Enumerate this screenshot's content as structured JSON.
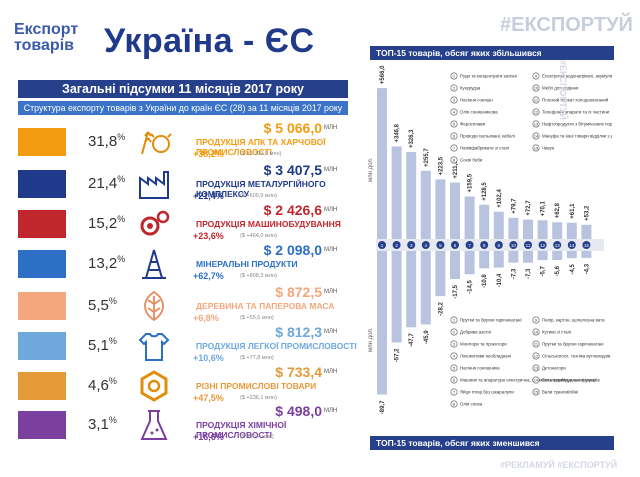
{
  "header": {
    "small_line1": "Експорт",
    "small_line2": "товарів",
    "big_title": "Україна - ЄС",
    "hashtag": "#ЕКСПОРТУЙ",
    "bottom_hashtag": "#РЕКЛАМУЙ #ЕКСПОРТУЙ"
  },
  "summary_title": "Загальні підсумки 11 місяців 2017 року",
  "structure_title": "Структура експорту товарів з України  до країн ЄС (28)  за 11 місяців 2017 року",
  "unit_mln": "МЛН",
  "categories": [
    {
      "pct": "31,8",
      "color": "#f39c12",
      "icon": "wheat-cow-icon",
      "amount": "$ 5 066,0",
      "name": "ПРОДУКЦІЯ АПК ТА ХАРЧОВОЇ ПРОМИСЛОВОСТІ",
      "growth": "+38,2%",
      "abs": "($ +1 399,9 млн)",
      "amount_color": "#f39c12",
      "name_color": "#f39c12"
    },
    {
      "pct": "21,4",
      "color": "#1f3a8a",
      "icon": "factory-icon",
      "amount": "$ 3 407,5",
      "name": "ПРОДУКЦІЯ МЕТАЛУРГІЙНОГО КОМПЛЕКСУ",
      "growth": "+21,4%",
      "abs": "($ +600,9 млн)",
      "amount_color": "#1f3a8a",
      "name_color": "#1f3a8a"
    },
    {
      "pct": "15,2",
      "color": "#c0272d",
      "icon": "gears-icon",
      "amount": "$ 2 426,6",
      "name": "ПРОДУКЦІЯ МАШИНОБУДУВАННЯ",
      "growth": "+23,6%",
      "abs": "($ +464,0 млн)",
      "amount_color": "#c0272d",
      "name_color": "#c0272d"
    },
    {
      "pct": "13,2",
      "color": "#2c6fc4",
      "icon": "oil-rig-icon",
      "amount": "$ 2 098,0",
      "name": "МІНЕРАЛЬНІ ПРОДУКТИ",
      "growth": "+62,7%",
      "abs": "($ +808,3 млн)",
      "amount_color": "#2c6fc4",
      "name_color": "#2c6fc4"
    },
    {
      "pct": "5,5",
      "color": "#f4a77c",
      "icon": "leaf-icon",
      "amount": "$ 872,5",
      "name": "ДЕРЕВИНА ТА ПАПЕРОВА МАСА",
      "growth": "+6,8%",
      "abs": "($ +55,6 млн)",
      "amount_color": "#f4a77c",
      "name_color": "#f4a77c"
    },
    {
      "pct": "5,1",
      "color": "#6fa8dc",
      "icon": "shirt-icon",
      "amount": "$ 812,3",
      "name": "ПРОДУКЦІЯ ЛЕГКОЇ ПРОМИСЛОВОСТІ",
      "growth": "+10,6%",
      "abs": "($ +77,8 млн)",
      "amount_color": "#6fa8dc",
      "name_color": "#6fa8dc"
    },
    {
      "pct": "4,6",
      "color": "#e59a3a",
      "icon": "nut-icon",
      "amount": "$ 733,4",
      "name": "РІЗНІ ПРОМИСЛОВІ ТОВАРИ",
      "growth": "+47,5%",
      "abs": "($ +236,1 млн)",
      "amount_color": "#e59a3a",
      "name_color": "#e59a3a"
    },
    {
      "pct": "3,1",
      "color": "#7b3fa0",
      "icon": "flask-icon",
      "amount": "$ 498,0",
      "name": "ПРОДУКЦІЯ ХІМІЧНОЇ ПРОМИСЛОВОСТІ",
      "growth": "+16,6%",
      "abs": "($ +70,7 млн)",
      "amount_color": "#7b3fa0",
      "name_color": "#7b3fa0"
    }
  ],
  "chart_titles": {
    "top": "ТОП-15 товарів, обсяг яких збільшився",
    "bottom": "ТОП-15 товарів, обсяг яких зменшився",
    "ylabel": "млн дол."
  },
  "chart_data": [
    {
      "type": "bar",
      "title": "ТОП-15 товарів, обсяг яких збільшився",
      "ylabel": "млн дол.",
      "categories": [
        "1",
        "2",
        "3",
        "4",
        "5",
        "6",
        "7",
        "8",
        "9",
        "10",
        "11",
        "12",
        "13",
        "14",
        "15"
      ],
      "values": [
        566.0,
        346.8,
        326.3,
        255.7,
        223.5,
        211.5,
        159.5,
        128.5,
        102.4,
        79.7,
        72.7,
        70.1,
        62.8,
        61.1,
        53.2
      ],
      "labels": [
        "+566,0",
        "+346,8",
        "+326,3",
        "+255,7",
        "+223,5",
        "+211,5",
        "+159,5",
        "+128,5",
        "+102,4",
        "+79,7",
        "+72,7",
        "+70,1",
        "+62,8",
        "+61,1",
        "+53,2"
      ],
      "ylim": [
        0,
        600
      ]
    },
    {
      "type": "bar",
      "title": "ТОП-15 товарів, обсяг яких зменшився",
      "ylabel": "млн дол.",
      "categories": [
        "1",
        "2",
        "3",
        "4",
        "5",
        "6",
        "7",
        "8",
        "9",
        "10",
        "11",
        "12",
        "13",
        "14",
        "15"
      ],
      "values": [
        -89.7,
        -57.2,
        -47.7,
        -45.9,
        -28.2,
        -17.5,
        -14.5,
        -10.8,
        -10.4,
        -7.3,
        -7.3,
        -5.7,
        -5.6,
        -4.5,
        -4.3
      ],
      "labels": [
        "-89,7",
        "-57,2",
        "-47,7",
        "-45,9",
        "-28,2",
        "-17,5",
        "-14,5",
        "-10,8",
        "-10,4",
        "-7,3",
        "-7,3",
        "-5,7",
        "-5,6",
        "-4,5",
        "-4,3"
      ],
      "ylim": [
        -100,
        0
      ]
    }
  ],
  "legend_top": [
    "Руди та концентрати залізні",
    "Кукурудза",
    "Насіння соняшн",
    "Олія соняшникова",
    "Феросплави",
    "Проводи ізольовані, кабелі",
    "Напівфабрикати зі сталі",
    "Соєві боби",
    "Електричні водонагрівачі, акумуляторні",
    "Мебл для сидіння",
    "Плоский прокат холоднокатаний",
    "Телефонні апарати та їх частини",
    "Нафтопродукти з бітумінозних порід",
    "Мануфа та інші товари відділки з деревини",
    "Чавун"
  ],
  "legend_bottom": [
    "Прутки та бруски гарячекатані",
    "Добрива азотні",
    "Монітори та проектори",
    "Локомотиви необладнані",
    "Насіння соняшника",
    "Машини та апаратура електрична, що мають індивідуальні функції",
    "Яйця птиці без шкаралупи",
    "Олія соєва",
    "Папір, картон, целюлозна вата",
    "Кутики зі сталі",
    "Прутки та бруски гарячекатані",
    "Сільськогосп. техніка вуглеводнів",
    "Детонатори",
    "Електрообладнання звукове",
    "Вали трансмісійні"
  ]
}
